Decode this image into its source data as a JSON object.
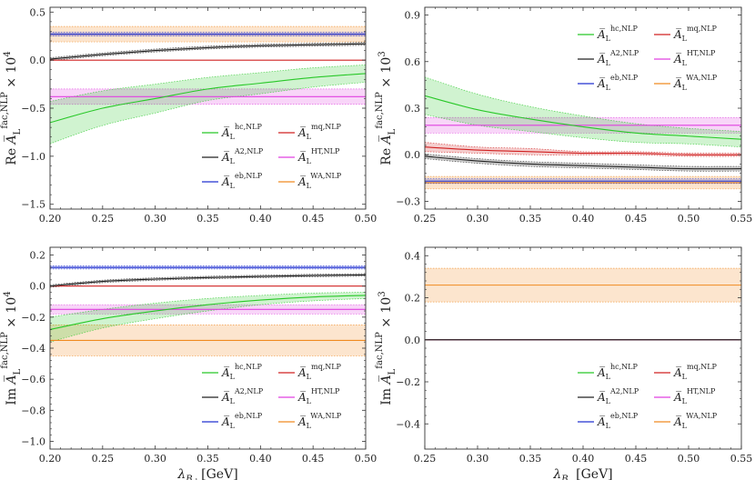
{
  "colors": {
    "hc": "#28c828",
    "mq": "#d02020",
    "A2": "#222222",
    "HT": "#e040e0",
    "eb": "#2030d0",
    "WA": "#f08a20"
  },
  "legend": [
    {
      "key": "hc",
      "base": "A̅",
      "sub": "L",
      "sup": "hc,NLP"
    },
    {
      "key": "mq",
      "base": "A̅",
      "sub": "L",
      "sup": "mq,NLP"
    },
    {
      "key": "A2",
      "base": "A̅",
      "sub": "L",
      "sup": "A2,NLP"
    },
    {
      "key": "HT",
      "base": "A̅",
      "sub": "L",
      "sup": "HT,NLP"
    },
    {
      "key": "eb",
      "base": "A̅",
      "sub": "L",
      "sup": "eb,NLP"
    },
    {
      "key": "WA",
      "base": "A̅",
      "sub": "L",
      "sup": "WA,NLP"
    }
  ],
  "chart_data": [
    {
      "type": "line",
      "panel": "top-left",
      "ylabel": "Re A̅L^fac,NLP × 10^4",
      "xlabel": "",
      "xlim": [
        0.2,
        0.5
      ],
      "ylim": [
        -1.55,
        0.55
      ],
      "xticks": [
        "0.20",
        "0.25",
        "0.30",
        "0.35",
        "0.40",
        "0.45",
        "0.50"
      ],
      "yticks": [
        "-1.5",
        "-1.0",
        "-0.5",
        "0.0",
        "0.5"
      ],
      "x": [
        0.2,
        0.25,
        0.3,
        0.35,
        0.4,
        0.45,
        0.5
      ],
      "legend_position": "bottom-right",
      "series": [
        {
          "key": "hc",
          "values": [
            -0.65,
            -0.5,
            -0.4,
            -0.3,
            -0.24,
            -0.18,
            -0.14
          ],
          "band": [
            0.22,
            0.18,
            0.15,
            0.12,
            0.11,
            0.1,
            0.09
          ]
        },
        {
          "key": "mq",
          "values": [
            0.0,
            0.0,
            0.0,
            0.0,
            0.0,
            0.0,
            0.0
          ],
          "band": [
            0,
            0,
            0,
            0,
            0,
            0,
            0
          ]
        },
        {
          "key": "A2",
          "values": [
            0.01,
            0.06,
            0.1,
            0.13,
            0.15,
            0.16,
            0.17
          ],
          "band": [
            0.015,
            0.015,
            0.015,
            0.015,
            0.015,
            0.015,
            0.015
          ]
        },
        {
          "key": "HT",
          "values": [
            -0.38,
            -0.38,
            -0.38,
            -0.38,
            -0.38,
            -0.38,
            -0.38
          ],
          "band": [
            0.08,
            0.08,
            0.08,
            0.08,
            0.08,
            0.08,
            0.08
          ]
        },
        {
          "key": "eb",
          "values": [
            0.27,
            0.27,
            0.27,
            0.27,
            0.27,
            0.27,
            0.27
          ],
          "band": [
            0.02,
            0.02,
            0.02,
            0.02,
            0.02,
            0.02,
            0.02
          ]
        },
        {
          "key": "WA",
          "values": [
            0.27,
            0.27,
            0.27,
            0.27,
            0.27,
            0.27,
            0.27
          ],
          "band": [
            0.08,
            0.08,
            0.08,
            0.08,
            0.08,
            0.08,
            0.08
          ]
        }
      ]
    },
    {
      "type": "line",
      "panel": "top-right",
      "ylabel": "Re A̅L^fac,NLP × 10^3",
      "xlabel": "",
      "xlim": [
        0.25,
        0.55
      ],
      "ylim": [
        -0.35,
        0.95
      ],
      "xticks": [
        "0.25",
        "0.30",
        "0.35",
        "0.40",
        "0.45",
        "0.50",
        "0.55"
      ],
      "yticks": [
        "-0.3",
        "0.0",
        "0.3",
        "0.6",
        "0.9"
      ],
      "x": [
        0.25,
        0.3,
        0.35,
        0.4,
        0.45,
        0.5,
        0.55
      ],
      "legend_position": "top-right",
      "series": [
        {
          "key": "hc",
          "values": [
            0.38,
            0.29,
            0.23,
            0.18,
            0.14,
            0.12,
            0.1
          ],
          "band": [
            0.12,
            0.1,
            0.08,
            0.07,
            0.06,
            0.05,
            0.05
          ]
        },
        {
          "key": "mq",
          "values": [
            0.05,
            0.03,
            0.02,
            0.01,
            0.01,
            0.0,
            0.0
          ],
          "band": [
            0.03,
            0.02,
            0.02,
            0.01,
            0.01,
            0.01,
            0.01
          ]
        },
        {
          "key": "A2",
          "values": [
            -0.01,
            -0.04,
            -0.06,
            -0.07,
            -0.08,
            -0.09,
            -0.09
          ],
          "band": [
            0.015,
            0.015,
            0.015,
            0.015,
            0.015,
            0.015,
            0.015
          ]
        },
        {
          "key": "HT",
          "values": [
            0.19,
            0.19,
            0.19,
            0.19,
            0.19,
            0.19,
            0.19
          ],
          "band": [
            0.05,
            0.05,
            0.05,
            0.05,
            0.05,
            0.05,
            0.05
          ]
        },
        {
          "key": "eb",
          "values": [
            -0.17,
            -0.17,
            -0.17,
            -0.17,
            -0.17,
            -0.17,
            -0.17
          ],
          "band": [
            0.015,
            0.015,
            0.015,
            0.015,
            0.015,
            0.015,
            0.015
          ]
        },
        {
          "key": "WA",
          "values": [
            -0.18,
            -0.18,
            -0.18,
            -0.18,
            -0.18,
            -0.18,
            -0.18
          ],
          "band": [
            0.04,
            0.04,
            0.04,
            0.04,
            0.04,
            0.04,
            0.04
          ]
        }
      ]
    },
    {
      "type": "line",
      "panel": "bottom-left",
      "ylabel": "Im A̅L^fac,NLP × 10^4",
      "xlabel": "λ_Bd [GeV]",
      "xlim": [
        0.2,
        0.5
      ],
      "ylim": [
        -1.05,
        0.25
      ],
      "xticks": [
        "0.20",
        "0.25",
        "0.30",
        "0.35",
        "0.40",
        "0.45",
        "0.50"
      ],
      "yticks": [
        "-1.0",
        "-0.8",
        "-0.6",
        "-0.4",
        "-0.2",
        "0.0",
        "0.2"
      ],
      "x": [
        0.2,
        0.25,
        0.3,
        0.35,
        0.4,
        0.45,
        0.5
      ],
      "legend_position": "bottom-right",
      "series": [
        {
          "key": "hc",
          "values": [
            -0.28,
            -0.21,
            -0.16,
            -0.12,
            -0.09,
            -0.07,
            -0.06
          ],
          "band": [
            0.08,
            0.06,
            0.05,
            0.04,
            0.03,
            0.025,
            0.02
          ]
        },
        {
          "key": "mq",
          "values": [
            0.0,
            0.0,
            0.0,
            0.0,
            0.0,
            0.0,
            0.0
          ],
          "band": [
            0,
            0,
            0,
            0,
            0,
            0,
            0
          ]
        },
        {
          "key": "A2",
          "values": [
            0.0,
            0.03,
            0.045,
            0.055,
            0.062,
            0.068,
            0.072
          ],
          "band": [
            0.008,
            0.008,
            0.008,
            0.008,
            0.008,
            0.008,
            0.008
          ]
        },
        {
          "key": "HT",
          "values": [
            -0.15,
            -0.15,
            -0.15,
            -0.15,
            -0.15,
            -0.15,
            -0.15
          ],
          "band": [
            0.03,
            0.03,
            0.03,
            0.03,
            0.03,
            0.03,
            0.03
          ]
        },
        {
          "key": "eb",
          "values": [
            0.12,
            0.12,
            0.12,
            0.12,
            0.12,
            0.12,
            0.12
          ],
          "band": [
            0.01,
            0.01,
            0.01,
            0.01,
            0.01,
            0.01,
            0.01
          ]
        },
        {
          "key": "WA",
          "values": [
            -0.35,
            -0.35,
            -0.35,
            -0.35,
            -0.35,
            -0.35,
            -0.35
          ],
          "band": [
            0.1,
            0.1,
            0.1,
            0.1,
            0.1,
            0.1,
            0.1
          ]
        }
      ]
    },
    {
      "type": "line",
      "panel": "bottom-right",
      "ylabel": "Im A̅L^fac,NLP × 10^3",
      "xlabel": "λ_Bs [GeV]",
      "xlim": [
        0.25,
        0.55
      ],
      "ylim": [
        -0.52,
        0.44
      ],
      "xticks": [
        "0.25",
        "0.30",
        "0.35",
        "0.40",
        "0.45",
        "0.50",
        "0.55"
      ],
      "yticks": [
        "-0.4",
        "-0.2",
        "0.0",
        "0.2",
        "0.4"
      ],
      "x": [
        0.25,
        0.3,
        0.35,
        0.4,
        0.45,
        0.5,
        0.55
      ],
      "legend_position": "bottom-right",
      "series": [
        {
          "key": "hc",
          "values": [
            0,
            0,
            0,
            0,
            0,
            0,
            0
          ],
          "band": [
            0,
            0,
            0,
            0,
            0,
            0,
            0
          ]
        },
        {
          "key": "mq",
          "values": [
            0,
            0,
            0,
            0,
            0,
            0,
            0
          ],
          "band": [
            0,
            0,
            0,
            0,
            0,
            0,
            0
          ]
        },
        {
          "key": "A2",
          "values": [
            0,
            0,
            0,
            0,
            0,
            0,
            0
          ],
          "band": [
            0,
            0,
            0,
            0,
            0,
            0,
            0
          ]
        },
        {
          "key": "HT",
          "values": [
            0,
            0,
            0,
            0,
            0,
            0,
            0
          ],
          "band": [
            0,
            0,
            0,
            0,
            0,
            0,
            0
          ]
        },
        {
          "key": "eb",
          "values": [
            0,
            0,
            0,
            0,
            0,
            0,
            0
          ],
          "band": [
            0,
            0,
            0,
            0,
            0,
            0,
            0
          ]
        },
        {
          "key": "WA",
          "values": [
            0.26,
            0.26,
            0.26,
            0.26,
            0.26,
            0.26,
            0.26
          ],
          "band": [
            0.08,
            0.08,
            0.08,
            0.08,
            0.08,
            0.08,
            0.08
          ]
        }
      ]
    }
  ]
}
